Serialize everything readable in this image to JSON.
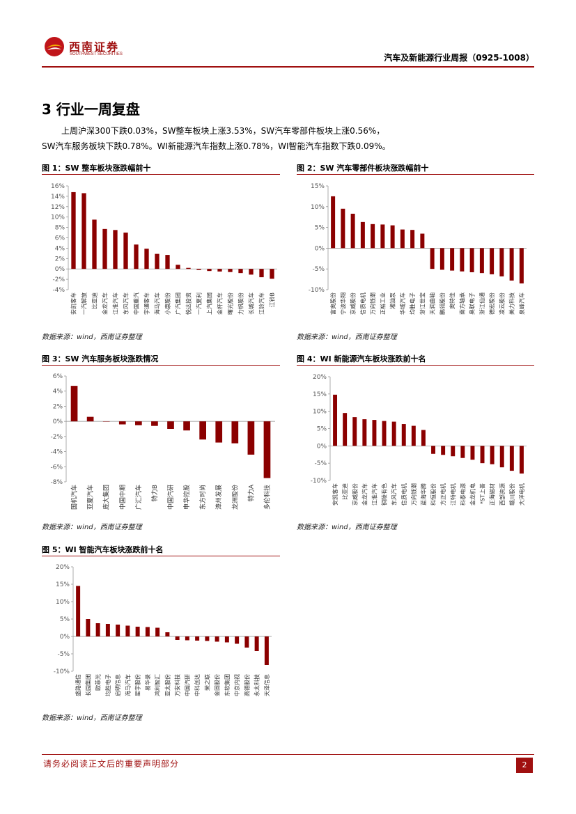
{
  "header": {
    "logo_cn": "西南证券",
    "logo_en": "SOUTHWEST SECURITIES",
    "title": "汽车及新能源行业周报（0925-1008）"
  },
  "section": {
    "title": "3 行业一周复盘",
    "summary_line1": "上周沪深300下跌0.03%，SW整车板块上涨3.53%，SW汽车零部件板块上涨0.56%，",
    "summary_line2": "SW汽车服务板块下跌0.78%。WI新能源汽车指数上涨0.78%，WI智能汽车指数下跌0.09%。"
  },
  "source_text": "数据来源：wind，西南证券整理",
  "footer": {
    "disclaimer": "请务必阅读正文后的重要声明部分",
    "page": "2"
  },
  "colors": {
    "accent": "#a01010",
    "bar": "#8b0000"
  },
  "chart_data": [
    {
      "type": "bar",
      "title": "图 1：SW 整车板块涨跌幅前十",
      "ylim": [
        -4,
        16
      ],
      "ticks": [
        -4,
        -2,
        0,
        2,
        4,
        6,
        8,
        10,
        12,
        14,
        16
      ],
      "unit": "%",
      "categories": [
        "安凯客车",
        "一汽解放",
        "比亚迪",
        "金龙汽车",
        "江淮汽车",
        "东风汽车",
        "中国重汽",
        "宇通客车",
        "海马汽车",
        "小康股份",
        "广汽集团",
        "悦达投资",
        "一汽夏利",
        "上汽集团",
        "金杯汽车",
        "曙光股份",
        "力帆股份",
        "长城汽车",
        "江铃汽车",
        "江铃B"
      ],
      "values": [
        14.8,
        14.6,
        9.5,
        7.7,
        7.5,
        7.0,
        4.7,
        3.9,
        2.9,
        2.7,
        0.8,
        0.2,
        -0.2,
        -0.4,
        -0.5,
        -0.6,
        -0.8,
        -1.1,
        -1.6,
        -1.9
      ]
    },
    {
      "type": "bar",
      "title": "图 2：SW 汽车零部件板块涨跌幅前十",
      "ylim": [
        -10,
        15
      ],
      "ticks": [
        -10,
        -5,
        0,
        5,
        10,
        15
      ],
      "unit": "%",
      "categories": [
        "富奥股份",
        "宁波华翔",
        "京威股份",
        "信质电机",
        "万向钱潮",
        "正裕工业",
        "湘油泵",
        "华域汽车",
        "均胜电子",
        "浙江世宝",
        "天润曲轴",
        "鹏翎股份",
        "奥特佳",
        "南方轴承",
        "奥联电子",
        "浙江仙通",
        "德宏股份",
        "凌云股份",
        "美力科技",
        "泉峰汽车"
      ],
      "values": [
        12.5,
        9.5,
        8.3,
        6.3,
        5.8,
        5.7,
        5.5,
        4.5,
        4.4,
        3.5,
        -5.0,
        -5.2,
        -5.4,
        -5.6,
        -5.8,
        -6.0,
        -6.3,
        -6.8,
        -7.8,
        -8.5
      ]
    },
    {
      "type": "bar",
      "title": "图 3：SW 汽车服务板块涨跌情况",
      "ylim": [
        -8,
        6
      ],
      "ticks": [
        -8,
        -6,
        -4,
        -2,
        0,
        2,
        4,
        6
      ],
      "unit": "%",
      "categories": [
        "国机汽车",
        "亚夏汽车",
        "庞大集团",
        "中国中期",
        "广汇汽车",
        "特力B",
        "中国汽研",
        "申华控股",
        "东方时尚",
        "漳州发展",
        "龙洲股份",
        "特力A",
        "多伦科技"
      ],
      "values": [
        4.7,
        0.6,
        0.0,
        -0.4,
        -0.5,
        -0.6,
        -1.0,
        -1.2,
        -2.4,
        -2.8,
        -2.9,
        -4.4,
        -7.5
      ]
    },
    {
      "type": "bar",
      "title": "图 4：WI 新能源汽车板块涨跌前十名",
      "ylim": [
        -10,
        20
      ],
      "ticks": [
        -10,
        -5,
        0,
        5,
        10,
        15,
        20
      ],
      "unit": "%",
      "categories": [
        "安凯客车",
        "比亚迪",
        "京威股份",
        "金龙汽车",
        "江淮汽车",
        "铜陵有色",
        "东风汽车",
        "信质电机",
        "万向钱潮",
        "蓝海华腾",
        "科恒股份",
        "方正电机",
        "江特电机",
        "科泰电源",
        "金龙机电",
        "*ST上普",
        "正海磁材",
        "西部资源",
        "赣川股份",
        "大洋电机"
      ],
      "values": [
        14.8,
        9.5,
        8.3,
        7.7,
        7.5,
        7.2,
        7.0,
        6.3,
        5.8,
        4.6,
        -2.3,
        -2.6,
        -3.0,
        -3.5,
        -4.0,
        -5.0,
        -5.3,
        -6.2,
        -7.2,
        -8.0
      ]
    },
    {
      "type": "bar",
      "title": "图 5：WI 智能汽车板块涨跌前十名",
      "ylim": [
        -10,
        20
      ],
      "ticks": [
        -10,
        -5,
        0,
        5,
        10,
        15,
        20
      ],
      "unit": "%",
      "categories": [
        "盛路通信",
        "长园集团",
        "欧菲光",
        "均胜电子",
        "启明信息",
        "海马汽车",
        "星宇股份",
        "易华录",
        "鸿利智汇",
        "亚太股份",
        "万安科技",
        "中国汽研",
        "中科创达",
        "荣之联",
        "金固股份",
        "东软集团",
        "中京内视",
        "高德股份",
        "永太科技",
        "天泽信息"
      ],
      "values": [
        14.5,
        5.0,
        3.8,
        3.6,
        3.4,
        3.1,
        2.8,
        2.7,
        2.5,
        1.2,
        -1.0,
        -1.1,
        -1.2,
        -1.3,
        -1.5,
        -1.7,
        -2.1,
        -3.2,
        -4.2,
        -8.2
      ]
    }
  ]
}
